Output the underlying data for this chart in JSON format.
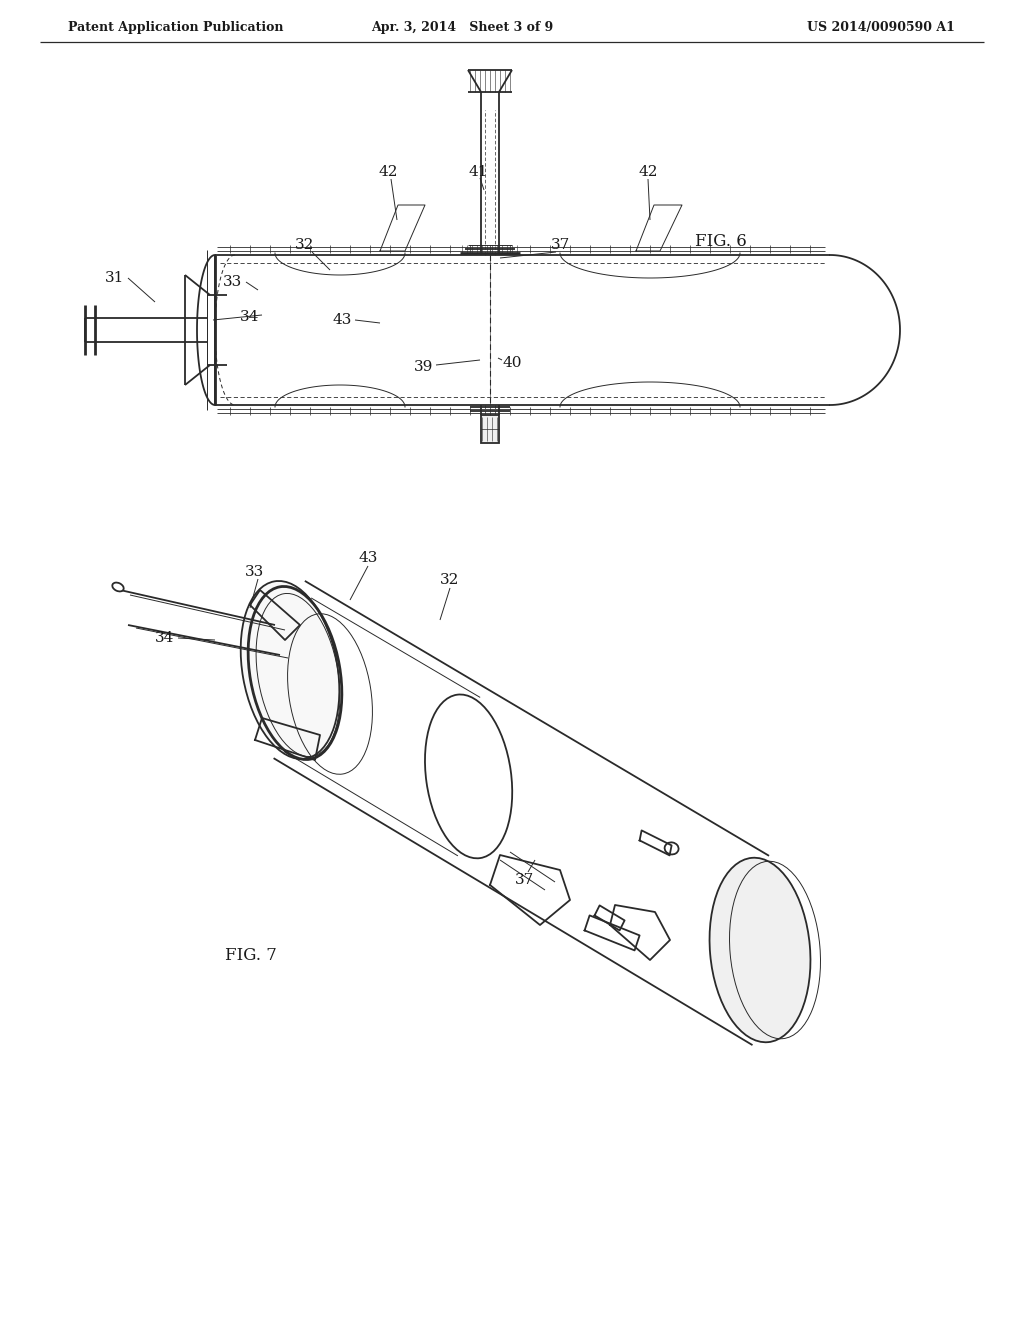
{
  "bg_color": "#ffffff",
  "line_color": "#2a2a2a",
  "text_color": "#1a1a1a",
  "header_left": "Patent Application Publication",
  "header_center": "Apr. 3, 2014   Sheet 3 of 9",
  "header_right": "US 2014/0090590 A1",
  "fig6_label": "FIG. 6",
  "fig7_label": "FIG. 7"
}
